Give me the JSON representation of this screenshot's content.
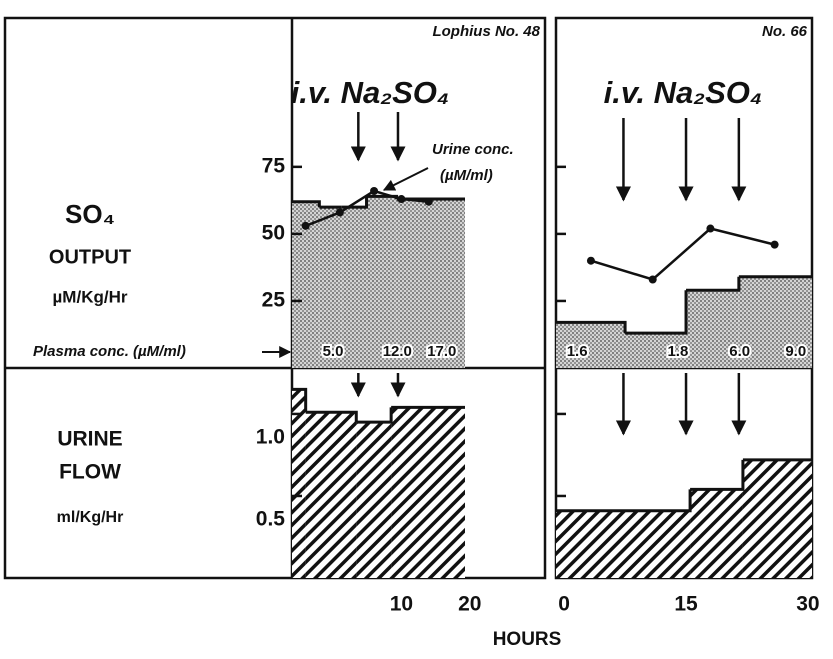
{
  "labels": {
    "so4": "SO₄",
    "output": "OUTPUT",
    "output_units": "µM/Kg/Hr",
    "urine": "URINE",
    "flow": "FLOW",
    "flow_units": "ml/Kg/Hr",
    "plasma": "Plasma conc. (µM/ml)",
    "x_label": "HOURS"
  },
  "chart_data": [
    {
      "type": "histogram",
      "title": "Lophius No. 48",
      "heading": "i.v. Na₂SO₄",
      "fill": "stipple",
      "bins": [
        -6,
        -2,
        1.2,
        4.9,
        9.3,
        19.3
      ],
      "values": [
        62,
        60,
        60,
        64,
        63
      ],
      "line_x": [
        -4,
        1,
        6,
        10,
        14
      ],
      "line_values": [
        53,
        58,
        66,
        63,
        62
      ],
      "annotation": [
        "Urine conc.",
        "(µM/ml)"
      ],
      "plasma_x": [
        0,
        9.4,
        15.9
      ],
      "plasma_conc": [
        {
          "value": 5,
          "label": "5.0"
        },
        {
          "value": 12,
          "label": "12.0"
        },
        {
          "value": 17,
          "label": "17.0"
        }
      ],
      "injection_times": [
        3.7,
        9.5
      ],
      "xlim": [
        -6,
        31
      ],
      "ylim": [
        0,
        130.5
      ],
      "yticks": [
        25,
        50,
        75
      ],
      "ytick_labels": true
    },
    {
      "type": "histogram",
      "fill": "hatch",
      "bins": [
        -6,
        -4,
        3.4,
        8.5,
        19.3
      ],
      "values": [
        1.15,
        1.01,
        0.95,
        1.04
      ],
      "injection_times": [
        3.7,
        9.5
      ],
      "xlim": [
        -6,
        31
      ],
      "ylim": [
        0,
        1.28
      ],
      "yticks": [
        0.5,
        {
          "value": 1,
          "label": "1.0"
        }
      ],
      "ytick_labels": true,
      "xticks": [
        10,
        20
      ]
    },
    {
      "type": "histogram",
      "title": "No. 66",
      "heading": "i.v. Na₂SO₄",
      "fill": "stipple",
      "bins": [
        -1,
        7.5,
        15,
        21.5,
        30.5
      ],
      "values": [
        17,
        13,
        29,
        34
      ],
      "line_x": [
        3.3,
        10.9,
        18,
        25.9
      ],
      "line_values": [
        40,
        33,
        52,
        46
      ],
      "plasma_x": [
        1.6,
        14,
        21.6,
        28.5
      ],
      "plasma_conc": [
        1.6,
        1.8,
        {
          "value": 6,
          "label": "6.0"
        },
        {
          "value": 9,
          "label": "9.0"
        }
      ],
      "injection_times": [
        7.3,
        15,
        21.5
      ],
      "xlim": [
        -1,
        30.5
      ],
      "ylim": [
        0,
        130.5
      ],
      "yticks": [
        25,
        50,
        75
      ],
      "ytick_labels": false
    },
    {
      "type": "histogram",
      "fill": "hatch",
      "bins": [
        -1,
        15.5,
        22,
        30.5
      ],
      "values": [
        0.41,
        0.54,
        0.72
      ],
      "injection_times": [
        7.3,
        15,
        21.5
      ],
      "xlim": [
        -1,
        30.5
      ],
      "ylim": [
        0,
        1.28
      ],
      "yticks": [
        0.5,
        {
          "value": 1,
          "label": "1.0"
        }
      ],
      "ytick_labels": false,
      "xticks": [
        0,
        15,
        30
      ]
    }
  ]
}
